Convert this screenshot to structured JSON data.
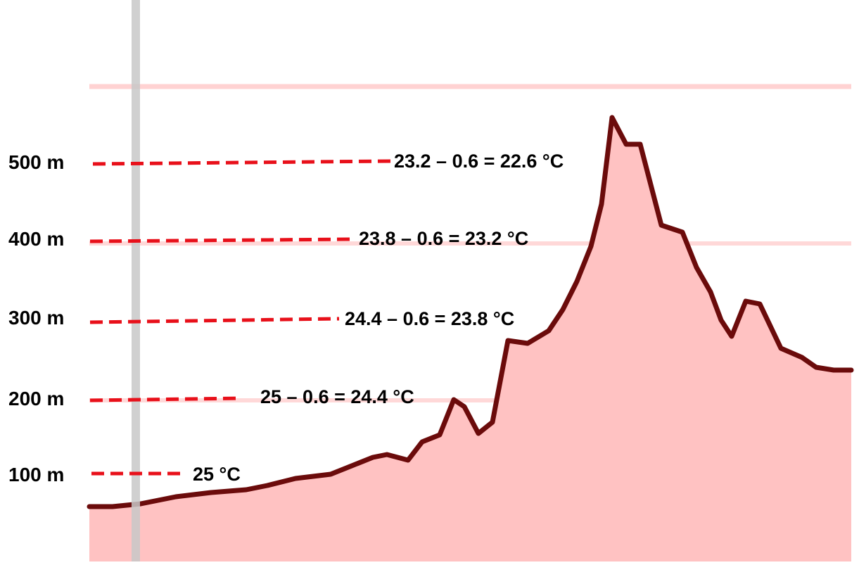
{
  "diagram": {
    "colors": {
      "profile_fill": "#ffc2c2",
      "profile_stroke": "#6b0b0b",
      "dash": "#e8101a",
      "gridline": "#ffd2d2",
      "marker_bar": "#c8c8c8"
    },
    "levels": [
      {
        "altitude": "100 m",
        "calculation": "25 °C"
      },
      {
        "altitude": "200 m",
        "calculation": "25 – 0.6 = 24.4 °C"
      },
      {
        "altitude": "300 m",
        "calculation": "24.4 – 0.6 = 23.8 °C"
      },
      {
        "altitude": "400 m",
        "calculation": "23.8 – 0.6 = 23.2 °C"
      },
      {
        "altitude": "500 m",
        "calculation": "23.2 – 0.6 = 22.6 °C"
      }
    ]
  }
}
